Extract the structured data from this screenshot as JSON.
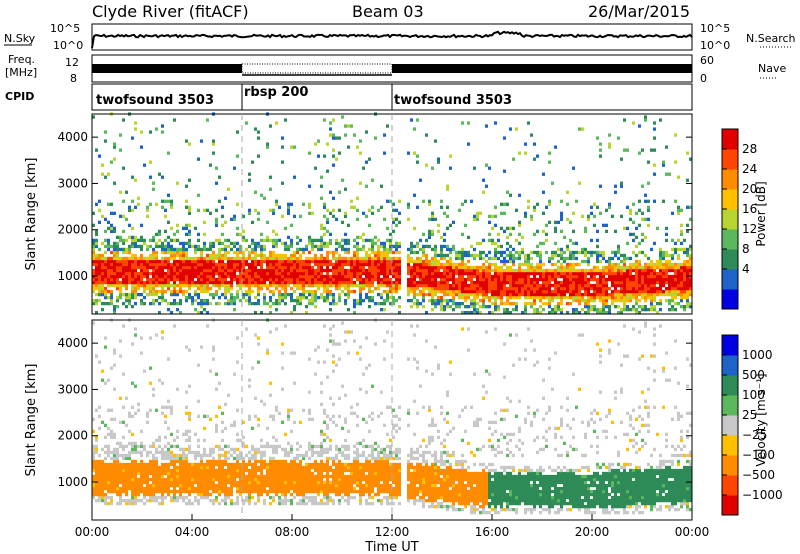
{
  "header": {
    "station": "Clyde River (fitACF)",
    "beam": "Beam 03",
    "date": "26/Mar/2015"
  },
  "noise_panel": {
    "left_label": "N.Sky",
    "right_label": "N.Search",
    "left_ticks": [
      "10^5",
      "10^0"
    ],
    "right_ticks": [
      "10^5",
      "10^0"
    ]
  },
  "freq_panel": {
    "left_label_line1": "Freq.",
    "left_label_line2": "[MHz]",
    "right_label": "Nave",
    "left_ticks": [
      "12",
      "8"
    ],
    "right_ticks": [
      "60",
      "0"
    ]
  },
  "cpid_panel": {
    "label": "CPID",
    "segments": [
      {
        "name": "twofsound 3503",
        "start_hour": 0,
        "end_hour": 6
      },
      {
        "name": "rbsp 200",
        "start_hour": 6,
        "end_hour": 12
      },
      {
        "name": "twofsound 3503",
        "start_hour": 12,
        "end_hour": 24
      }
    ]
  },
  "chart_data": [
    {
      "type": "heatmap",
      "title": "Power",
      "xlabel": "Time UT",
      "ylabel": "Slant Range [km]",
      "x_ticks": [
        "00:00",
        "04:00",
        "08:00",
        "12:00",
        "16:00",
        "20:00",
        "00:00"
      ],
      "xlim_hours": [
        0,
        24
      ],
      "y_ticks": [
        1000,
        2000,
        3000,
        4000
      ],
      "ylim": [
        180,
        4500
      ],
      "colorbar": {
        "label": "Power [dB]",
        "ticks": [
          "28",
          "24",
          "20",
          "16",
          "12",
          "8",
          "4"
        ],
        "range": [
          0,
          30
        ],
        "colors": [
          "#0000e0",
          "#1e64c8",
          "#2e8b57",
          "#5cb85c",
          "#b8d430",
          "#ffc000",
          "#ff8c00",
          "#ff4500",
          "#e00000"
        ]
      },
      "features": [
        {
          "label": "main scatter band",
          "hours": [
            0,
            24
          ],
          "range_km": [
            700,
            1500
          ],
          "power_db": 28
        },
        {
          "label": "upper edge",
          "hours": [
            0,
            24
          ],
          "range_km": [
            1500,
            2200
          ],
          "power_db": 12
        },
        {
          "label": "sparse far scatter",
          "hours": [
            0,
            24
          ],
          "range_km": [
            2200,
            4500
          ],
          "power_db": 10
        }
      ]
    },
    {
      "type": "heatmap",
      "title": "Velocity",
      "xlabel": "Time UT",
      "ylabel": "Slant Range [km]",
      "x_ticks": [
        "00:00",
        "04:00",
        "08:00",
        "12:00",
        "16:00",
        "20:00",
        "00:00"
      ],
      "xlim_hours": [
        0,
        24
      ],
      "y_ticks": [
        1000,
        2000,
        3000,
        4000
      ],
      "ylim": [
        180,
        4500
      ],
      "colorbar": {
        "label": "Velocity [m s⁻¹]",
        "ticks": [
          "1000",
          "500",
          "100",
          "25",
          "−25",
          "−100",
          "−500",
          "−1000"
        ],
        "range": [
          -1000,
          1000
        ],
        "colors": [
          "#e00000",
          "#ff4500",
          "#ff8c00",
          "#ffc000",
          "#c8c8c8",
          "#5cb85c",
          "#2e8b57",
          "#1e64c8",
          "#0000e0"
        ]
      },
      "features": [
        {
          "label": "away flow",
          "hours": [
            0,
            15.8
          ],
          "range_km": [
            600,
            1600
          ],
          "velocity_ms": -300
        },
        {
          "label": "toward flow",
          "hours": [
            15.8,
            24
          ],
          "range_km": [
            600,
            1600
          ],
          "velocity_ms": 200
        },
        {
          "label": "near-zero upper band",
          "hours": [
            0,
            24
          ],
          "range_km": [
            1500,
            2100
          ],
          "velocity_ms": 0
        }
      ]
    }
  ]
}
